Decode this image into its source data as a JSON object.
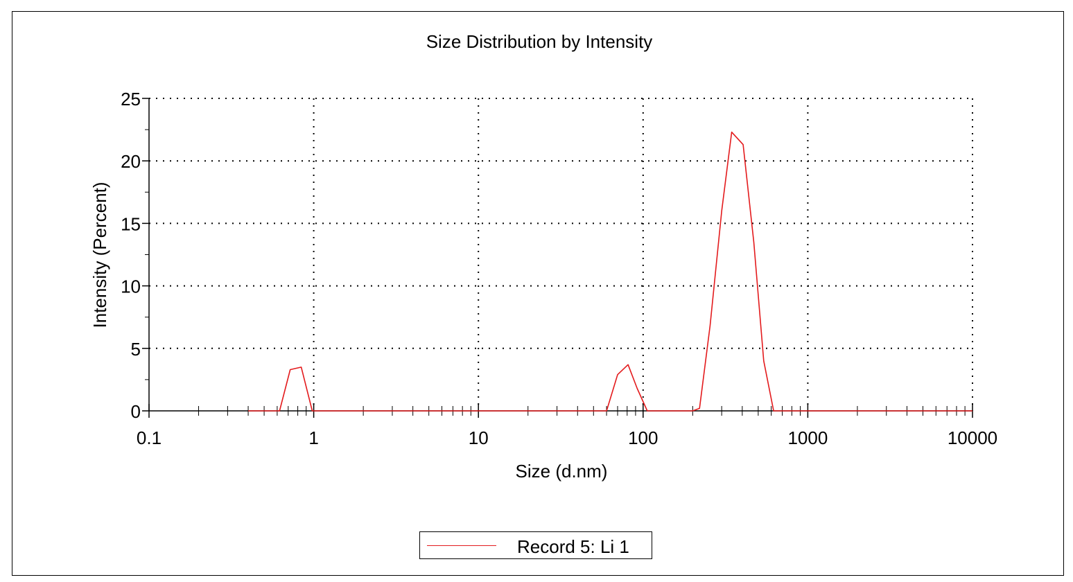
{
  "chart_data": {
    "type": "line",
    "title": "Size Distribution by Intensity",
    "xlabel": "Size (d.nm)",
    "ylabel": "Intensity (Percent)",
    "x_scale": "log",
    "xlim": [
      0.1,
      10000
    ],
    "ylim": [
      0,
      25
    ],
    "x_ticks": [
      0.1,
      1,
      10,
      100,
      1000,
      10000
    ],
    "x_tick_labels": [
      "0.1",
      "1",
      "10",
      "100",
      "1000",
      "10000"
    ],
    "y_ticks": [
      0,
      5,
      10,
      15,
      20,
      25
    ],
    "y_tick_labels": [
      "0",
      "5",
      "10",
      "15",
      "20",
      "25"
    ],
    "grid": true,
    "legend_position": "bottom-center",
    "series": [
      {
        "name": "Record 5: Li 1",
        "color": "#e31a1c",
        "x": [
          0.4,
          0.62,
          0.72,
          0.84,
          0.98,
          1.1,
          60,
          70,
          81,
          92,
          106,
          200,
          220,
          255,
          300,
          345,
          405,
          470,
          540,
          620,
          700,
          10000
        ],
        "y": [
          0,
          0,
          3.3,
          3.5,
          0,
          0,
          0,
          2.9,
          3.7,
          1.8,
          0,
          0,
          0.2,
          6.8,
          16,
          22.3,
          21.3,
          13.5,
          4,
          0,
          0,
          0
        ]
      }
    ]
  }
}
